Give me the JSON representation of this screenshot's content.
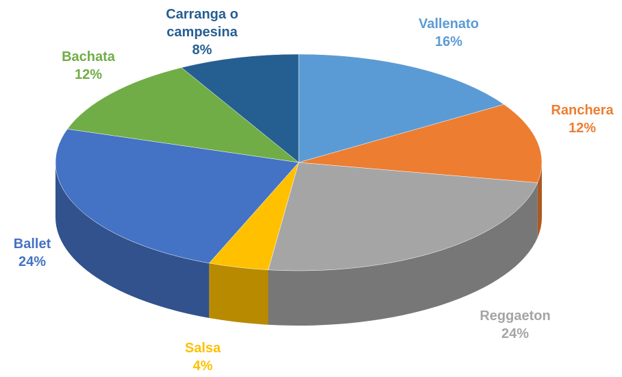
{
  "chart_data": {
    "type": "pie3d",
    "categories": [
      "Vallenato",
      "Ranchera",
      "Reggaeton",
      "Salsa",
      "Ballet",
      "Bachata",
      "Carranga o campesina"
    ],
    "values": [
      16,
      12,
      24,
      4,
      24,
      12,
      8
    ],
    "value_labels": [
      "16%",
      "12%",
      "24%",
      "4%",
      "24%",
      "12%",
      "8%"
    ],
    "colors": [
      "#5b9bd5",
      "#ed7d31",
      "#a5a5a5",
      "#ffc000",
      "#4472c4",
      "#70ad47",
      "#255e91"
    ]
  }
}
